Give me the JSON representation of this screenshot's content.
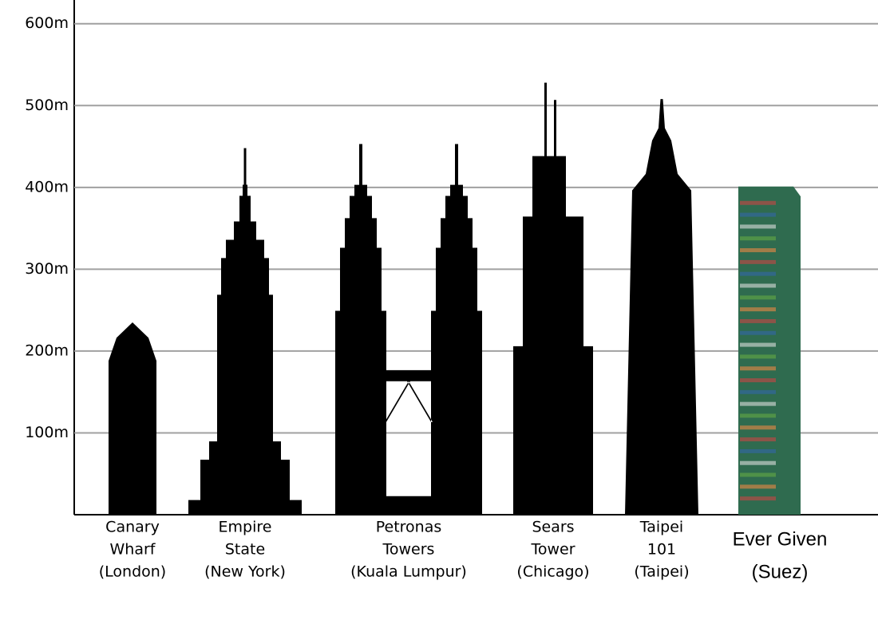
{
  "chart_data": {
    "type": "silhouette",
    "categories": [
      [
        "Canary",
        "Wharf",
        "(London)"
      ],
      [
        "Empire",
        "State",
        "(New York)"
      ],
      [
        "Petronas",
        "Towers",
        "(Kuala Lumpur)"
      ],
      [
        "Sears",
        "Tower",
        "(Chicago)"
      ],
      [
        "Taipei",
        "101",
        "(Taipei)"
      ],
      [
        "Ever Given",
        "(Suez)"
      ]
    ],
    "values": [
      235,
      448,
      453,
      528,
      508,
      401
    ],
    "colors": [
      "#000000",
      "#000000",
      "#000000",
      "#000000",
      "#000000",
      "#2f6b4f"
    ],
    "ylim": [
      0,
      629
    ],
    "yticks": [
      {
        "value": 100,
        "label": "100m"
      },
      {
        "value": 200,
        "label": "200m"
      },
      {
        "value": 300,
        "label": "300m"
      },
      {
        "value": 400,
        "label": "400m"
      },
      {
        "value": 500,
        "label": "500m"
      },
      {
        "value": 600,
        "label": "600m"
      }
    ],
    "grid": true
  }
}
